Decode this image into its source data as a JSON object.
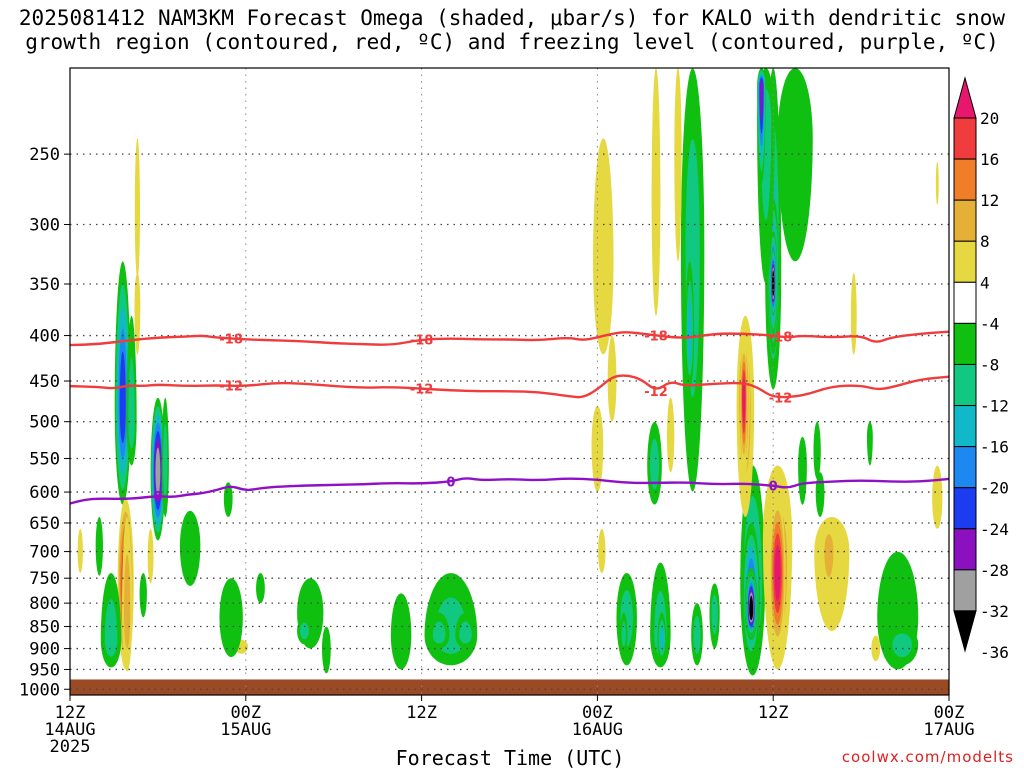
{
  "title": {
    "line1": "2025081412 NAM3KM Forecast Omega (shaded, μbar/s) for KALO with dendritic snow",
    "line2": "growth region (contoured, red, ºC) and freezing level (contoured, purple, ºC)"
  },
  "credit": "coolwx.com/modelts",
  "chart_data": {
    "type": "heatmap",
    "xlabel": "Forecast Time (UTC)",
    "ylabel": "",
    "x_range_hours": [
      0,
      60
    ],
    "y_range_hpa": [
      200,
      1000
    ],
    "y_scale": "log-pressure",
    "grid": true,
    "x_ticks": [
      {
        "hour": 0,
        "label": [
          "12Z",
          "14AUG",
          "2025"
        ]
      },
      {
        "hour": 12,
        "label": [
          "00Z",
          "15AUG"
        ]
      },
      {
        "hour": 24,
        "label": [
          "12Z"
        ]
      },
      {
        "hour": 36,
        "label": [
          "00Z",
          "16AUG"
        ]
      },
      {
        "hour": 48,
        "label": [
          "12Z"
        ]
      },
      {
        "hour": 60,
        "label": [
          "00Z",
          "17AUG"
        ]
      }
    ],
    "y_ticks": [
      250,
      300,
      350,
      400,
      450,
      500,
      550,
      600,
      650,
      700,
      750,
      800,
      850,
      900,
      950,
      1000
    ],
    "surface_pressure_hpa": 975,
    "colorbar": {
      "levels": [
        20,
        16,
        12,
        8,
        4,
        -4,
        -8,
        -12,
        -16,
        -20,
        -24,
        -28,
        -32,
        -36
      ],
      "colors": [
        "#e8176e",
        "#f03c3c",
        "#f07e28",
        "#e4b036",
        "#e6d840",
        "#ffffff",
        "#10c010",
        "#10c880",
        "#10b8c8",
        "#1c88f0",
        "#1c3cf0",
        "#8a10c0",
        "#a0a0a0",
        "#000000"
      ]
    },
    "contours": [
      {
        "name": "-18",
        "color": "#f03c3c",
        "points": [
          [
            0,
            410
          ],
          [
            2,
            409
          ],
          [
            4,
            405
          ],
          [
            6,
            402
          ],
          [
            8,
            401
          ],
          [
            9,
            400
          ],
          [
            10,
            402
          ],
          [
            12,
            404
          ],
          [
            14,
            405
          ],
          [
            16,
            406
          ],
          [
            18,
            408
          ],
          [
            20,
            409
          ],
          [
            22,
            410
          ],
          [
            24,
            404
          ],
          [
            26,
            403
          ],
          [
            28,
            404
          ],
          [
            30,
            404
          ],
          [
            32,
            405
          ],
          [
            34,
            402
          ],
          [
            35,
            405
          ],
          [
            36,
            402
          ],
          [
            37,
            398
          ],
          [
            38,
            396
          ],
          [
            40,
            400
          ],
          [
            42,
            403
          ],
          [
            44,
            398
          ],
          [
            46,
            398
          ],
          [
            48,
            400
          ],
          [
            49,
            402
          ],
          [
            50,
            400
          ],
          [
            52,
            402
          ],
          [
            54,
            400
          ],
          [
            55,
            408
          ],
          [
            56,
            402
          ],
          [
            58,
            398
          ],
          [
            60,
            396
          ]
        ]
      },
      {
        "name": "-12",
        "color": "#f03c3c",
        "points": [
          [
            0,
            456
          ],
          [
            2,
            457
          ],
          [
            3,
            459
          ],
          [
            4,
            455
          ],
          [
            5,
            456
          ],
          [
            6,
            454
          ],
          [
            8,
            456
          ],
          [
            10,
            455
          ],
          [
            12,
            456
          ],
          [
            14,
            452
          ],
          [
            16,
            453
          ],
          [
            18,
            456
          ],
          [
            20,
            458
          ],
          [
            22,
            457
          ],
          [
            24,
            459
          ],
          [
            26,
            461
          ],
          [
            28,
            462
          ],
          [
            30,
            462
          ],
          [
            32,
            463
          ],
          [
            34,
            468
          ],
          [
            35,
            470
          ],
          [
            36,
            460
          ],
          [
            37,
            445
          ],
          [
            38,
            443
          ],
          [
            39,
            448
          ],
          [
            40,
            462
          ],
          [
            41,
            450
          ],
          [
            42,
            456
          ],
          [
            44,
            453
          ],
          [
            46,
            452
          ],
          [
            47,
            458
          ],
          [
            48,
            470
          ],
          [
            50,
            468
          ],
          [
            52,
            456
          ],
          [
            54,
            455
          ],
          [
            55,
            460
          ],
          [
            56,
            458
          ],
          [
            58,
            448
          ],
          [
            60,
            445
          ]
        ]
      },
      {
        "name": "0",
        "color": "#9010c8",
        "points": [
          [
            0,
            618
          ],
          [
            1,
            612
          ],
          [
            2,
            610
          ],
          [
            4,
            611
          ],
          [
            6,
            606
          ],
          [
            7,
            608
          ],
          [
            8,
            604
          ],
          [
            9,
            602
          ],
          [
            10,
            597
          ],
          [
            11,
            590
          ],
          [
            12,
            598
          ],
          [
            13,
            594
          ],
          [
            14,
            592
          ],
          [
            16,
            590
          ],
          [
            18,
            589
          ],
          [
            20,
            588
          ],
          [
            22,
            586
          ],
          [
            24,
            587
          ],
          [
            26,
            584
          ],
          [
            27,
            578
          ],
          [
            28,
            582
          ],
          [
            30,
            580
          ],
          [
            32,
            582
          ],
          [
            34,
            579
          ],
          [
            36,
            581
          ],
          [
            38,
            586
          ],
          [
            40,
            586
          ],
          [
            42,
            585
          ],
          [
            44,
            588
          ],
          [
            46,
            587
          ],
          [
            48,
            590
          ],
          [
            49,
            594
          ],
          [
            50,
            586
          ],
          [
            52,
            584
          ],
          [
            54,
            582
          ],
          [
            56,
            584
          ],
          [
            58,
            584
          ],
          [
            60,
            580
          ]
        ]
      }
    ],
    "omega_features": [
      {
        "t": 3.6,
        "p": 470,
        "value": -20
      },
      {
        "t": 3.8,
        "p": 760,
        "value": 20
      },
      {
        "t": 6.2,
        "p": 560,
        "value": -28
      },
      {
        "t": 26.0,
        "p": 870,
        "value": -4
      },
      {
        "t": 46.5,
        "p": 820,
        "value": -36
      },
      {
        "t": 46.0,
        "p": 470,
        "value": 20
      },
      {
        "t": 48.0,
        "p": 345,
        "value": -36
      },
      {
        "t": 47.9,
        "p": 740,
        "value": 20
      },
      {
        "t": 58.8,
        "p": 630,
        "value": 8
      }
    ]
  }
}
